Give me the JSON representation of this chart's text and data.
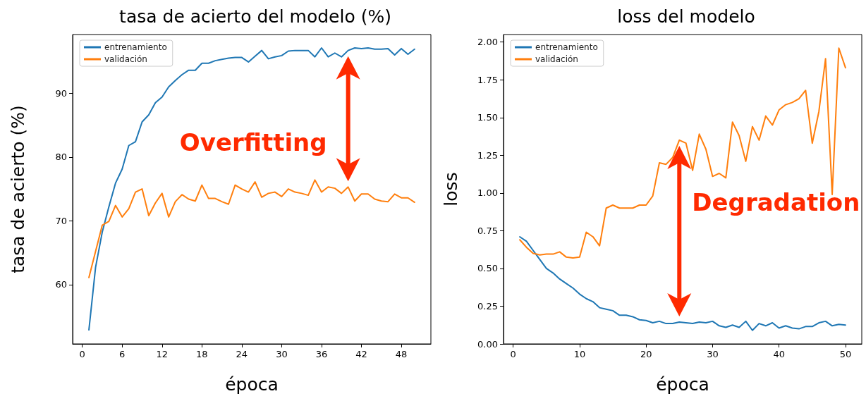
{
  "chart_data": [
    {
      "type": "line",
      "title": "tasa de acierto del modelo (%)",
      "xlabel": "época",
      "ylabel": "tasa de acierto (%)",
      "x": [
        1,
        2,
        3,
        4,
        5,
        6,
        7,
        8,
        9,
        10,
        11,
        12,
        13,
        14,
        15,
        16,
        17,
        18,
        19,
        20,
        21,
        22,
        23,
        24,
        25,
        26,
        27,
        28,
        29,
        30,
        31,
        32,
        33,
        34,
        35,
        36,
        37,
        38,
        39,
        40,
        41,
        42,
        43,
        44,
        45,
        46,
        47,
        48,
        49,
        50
      ],
      "series": [
        {
          "name": "entrenamiento",
          "color": "#1f77b4",
          "values": [
            52.9,
            62.7,
            68.2,
            72.2,
            75.9,
            78.1,
            81.8,
            82.4,
            85.5,
            86.6,
            88.5,
            89.4,
            91.0,
            92.0,
            92.9,
            93.6,
            93.6,
            94.7,
            94.7,
            95.1,
            95.3,
            95.5,
            95.6,
            95.6,
            94.9,
            95.8,
            96.7,
            95.4,
            95.7,
            95.9,
            96.6,
            96.7,
            96.7,
            96.7,
            95.7,
            97.1,
            95.7,
            96.3,
            95.7,
            96.7,
            97.1,
            97.0,
            97.1,
            96.9,
            96.9,
            97.0,
            96.0,
            97.0,
            96.1,
            96.9
          ]
        },
        {
          "name": "validación",
          "color": "#ff7f0e",
          "values": [
            61.1,
            65.2,
            69.3,
            69.9,
            72.4,
            70.6,
            71.9,
            74.5,
            75.0,
            70.8,
            72.8,
            74.3,
            70.6,
            73.0,
            74.1,
            73.4,
            73.1,
            75.6,
            73.5,
            73.5,
            73.0,
            72.6,
            75.6,
            75.0,
            74.5,
            76.1,
            73.7,
            74.3,
            74.5,
            73.8,
            75.0,
            74.5,
            74.3,
            74.0,
            76.4,
            74.5,
            75.3,
            75.1,
            74.3,
            75.3,
            73.1,
            74.2,
            74.2,
            73.4,
            73.1,
            73.0,
            74.2,
            73.6,
            73.6,
            72.9
          ]
        }
      ],
      "xlim": [
        -1.45,
        52.45
      ],
      "xticks": [
        0,
        6,
        12,
        18,
        24,
        30,
        36,
        42,
        48
      ],
      "ylim": [
        50.7,
        99.2
      ],
      "yticks": [
        60,
        70,
        80,
        90
      ],
      "annotations": [
        "Overfitting"
      ],
      "legend": "top left",
      "grid": false,
      "marker": "none",
      "line_style": "solid"
    },
    {
      "type": "line",
      "title": "loss del modelo",
      "xlabel": "época",
      "ylabel": "loss",
      "x": [
        1,
        2,
        3,
        4,
        5,
        6,
        7,
        8,
        9,
        10,
        11,
        12,
        13,
        14,
        15,
        16,
        17,
        18,
        19,
        20,
        21,
        22,
        23,
        24,
        25,
        26,
        27,
        28,
        29,
        30,
        31,
        32,
        33,
        34,
        35,
        36,
        37,
        38,
        39,
        40,
        41,
        42,
        43,
        44,
        45,
        46,
        47,
        48,
        49,
        50
      ],
      "series": [
        {
          "name": "entrenamiento",
          "color": "#1f77b4",
          "values": [
            0.71,
            0.68,
            0.62,
            0.56,
            0.5,
            0.47,
            0.43,
            0.4,
            0.37,
            0.33,
            0.3,
            0.28,
            0.24,
            0.23,
            0.22,
            0.19,
            0.19,
            0.18,
            0.16,
            0.155,
            0.14,
            0.15,
            0.135,
            0.135,
            0.145,
            0.14,
            0.135,
            0.145,
            0.14,
            0.15,
            0.12,
            0.11,
            0.125,
            0.11,
            0.15,
            0.09,
            0.135,
            0.12,
            0.14,
            0.105,
            0.12,
            0.105,
            0.1,
            0.115,
            0.115,
            0.14,
            0.15,
            0.12,
            0.13,
            0.125
          ]
        },
        {
          "name": "validación",
          "color": "#ff7f0e",
          "values": [
            0.69,
            0.64,
            0.6,
            0.59,
            0.595,
            0.595,
            0.61,
            0.575,
            0.57,
            0.575,
            0.74,
            0.71,
            0.65,
            0.9,
            0.92,
            0.9,
            0.9,
            0.9,
            0.92,
            0.92,
            0.98,
            1.2,
            1.19,
            1.235,
            1.35,
            1.33,
            1.15,
            1.39,
            1.29,
            1.11,
            1.13,
            1.1,
            1.47,
            1.38,
            1.21,
            1.44,
            1.35,
            1.51,
            1.45,
            1.55,
            1.585,
            1.6,
            1.625,
            1.68,
            1.33,
            1.54,
            1.89,
            0.99,
            1.96,
            1.83
          ]
        }
      ],
      "xlim": [
        -1.45,
        52.45
      ],
      "xticks": [
        0,
        10,
        20,
        30,
        40,
        50
      ],
      "ylim": [
        0,
        2.05
      ],
      "yticks": [
        {
          "value": 0,
          "label": "0.00"
        },
        {
          "value": 0.25,
          "label": "0.25"
        },
        {
          "value": 0.5,
          "label": "0.50"
        },
        {
          "value": 0.75,
          "label": "0.75"
        },
        {
          "value": 1,
          "label": "1.00"
        },
        {
          "value": 1.25,
          "label": "1.25"
        },
        {
          "value": 1.5,
          "label": "1.50"
        },
        {
          "value": 1.75,
          "label": "1.75"
        },
        {
          "value": 2,
          "label": "2.00"
        }
      ],
      "annotations": [
        "Degradation"
      ],
      "legend": "top left",
      "grid": false,
      "marker": "none",
      "line_style": "solid"
    }
  ]
}
